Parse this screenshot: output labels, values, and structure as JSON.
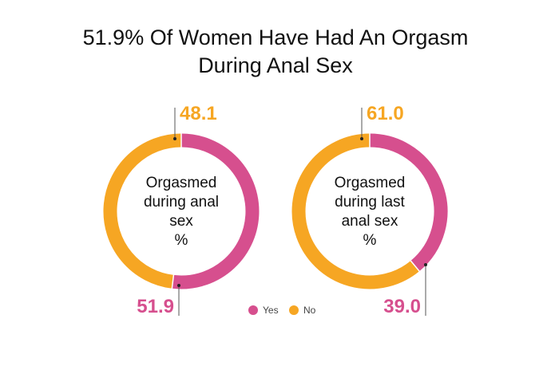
{
  "title": {
    "line1": "51.9% Of Women Have Had An Orgasm",
    "line2": "During Anal Sex"
  },
  "colors": {
    "yes": "#D64F8E",
    "no": "#F6A623",
    "leader": "#555555"
  },
  "legend": [
    {
      "key": "yes",
      "label": "Yes"
    },
    {
      "key": "no",
      "label": "No"
    }
  ],
  "chart_data": [
    {
      "type": "pie",
      "variant": "donut",
      "center_label": [
        "Orgasmed",
        "during anal",
        "sex",
        "%"
      ],
      "categories": [
        "Yes",
        "No"
      ],
      "values": [
        51.9,
        48.1
      ],
      "value_labels": [
        "51.9",
        "48.1"
      ]
    },
    {
      "type": "pie",
      "variant": "donut",
      "center_label": [
        "Orgasmed",
        "during last",
        "anal sex",
        "%"
      ],
      "categories": [
        "Yes",
        "No"
      ],
      "values": [
        39.0,
        61.0
      ],
      "value_labels": [
        "39.0",
        "61.0"
      ]
    }
  ]
}
